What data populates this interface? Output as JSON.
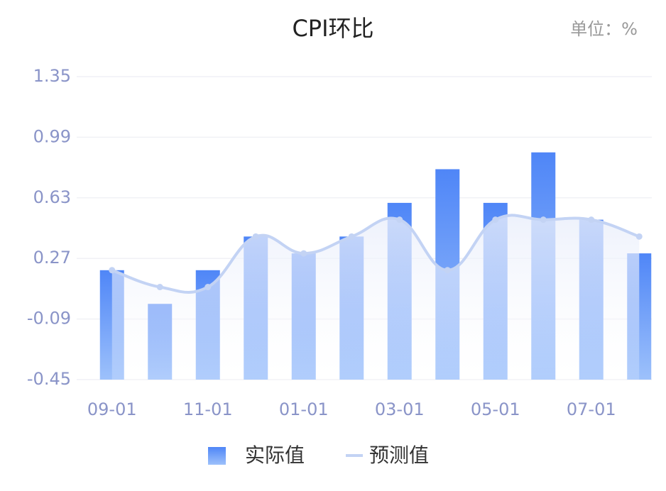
{
  "chart_data": {
    "type": "bar-line",
    "title": "CPI环比",
    "unit_label": "单位：%",
    "categories": [
      "09-01",
      null,
      "11-01",
      null,
      "01-01",
      null,
      "03-01",
      null,
      "05-01",
      null,
      "07-01",
      null
    ],
    "series": [
      {
        "name": "实际值",
        "type": "bar",
        "color": "#4f86f7",
        "values": [
          0.2,
          0.0,
          0.2,
          0.4,
          0.3,
          0.4,
          0.6,
          0.8,
          0.6,
          0.9,
          0.5,
          0.3
        ]
      },
      {
        "name": "预测值",
        "type": "line",
        "color": "#c3d3f4",
        "values": [
          0.2,
          0.1,
          0.1,
          0.4,
          0.3,
          0.4,
          0.5,
          0.2,
          0.5,
          0.5,
          0.5,
          0.4
        ]
      }
    ],
    "ylim": [
      -0.45,
      1.35
    ],
    "yticks": [
      -0.45,
      -0.09,
      0.27,
      0.63,
      0.99,
      1.35
    ],
    "grid": true,
    "legend": "bottom"
  }
}
